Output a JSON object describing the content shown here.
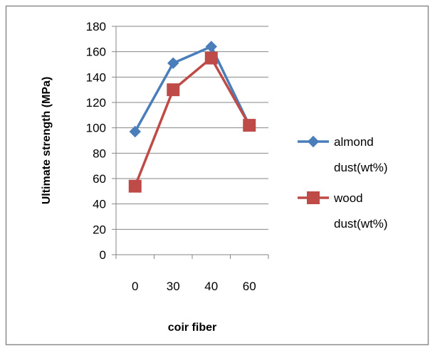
{
  "chart_data": {
    "type": "line",
    "title": "",
    "xlabel": "coir fiber",
    "ylabel": "Ultimate strength (MPa)",
    "categories": [
      "0",
      "30",
      "40",
      "60"
    ],
    "ylim": [
      0,
      180
    ],
    "yticks": [
      0,
      20,
      40,
      60,
      80,
      100,
      120,
      140,
      160,
      180
    ],
    "grid": "horizontal",
    "legend_position": "right",
    "series": [
      {
        "name": "almond dust(wt%)",
        "name_lines": [
          "almond",
          "dust(wt%)"
        ],
        "marker": "diamond",
        "color": "#4A7EBB",
        "values": [
          97,
          151,
          164,
          102
        ]
      },
      {
        "name": "wood dust(wt%)",
        "name_lines": [
          "wood",
          "dust(wt%)"
        ],
        "marker": "square",
        "color": "#BE4B48",
        "values": [
          54,
          130,
          155,
          102
        ]
      }
    ]
  },
  "colors": {
    "border": "#8C8C8C",
    "grid": "#868686",
    "axis": "#868686",
    "text": "#000000"
  }
}
